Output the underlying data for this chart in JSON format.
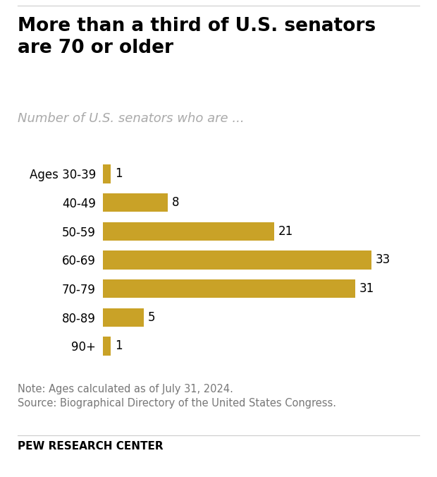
{
  "title": "More than a third of U.S. senators\nare 70 or older",
  "subtitle": "Number of U.S. senators who are ...",
  "categories": [
    "Ages 30-39",
    "40-49",
    "50-59",
    "60-69",
    "70-79",
    "80-89",
    "90+"
  ],
  "values": [
    1,
    8,
    21,
    33,
    31,
    5,
    1
  ],
  "bar_color": "#C9A227",
  "background_color": "#FFFFFF",
  "note_line1": "Note: Ages calculated as of July 31, 2024.",
  "note_line2": "Source: Biographical Directory of the United States Congress.",
  "source_label": "PEW RESEARCH CENTER",
  "title_fontsize": 19,
  "subtitle_fontsize": 13,
  "label_fontsize": 12,
  "note_fontsize": 10.5,
  "source_fontsize": 11,
  "xlim": [
    0,
    37
  ]
}
